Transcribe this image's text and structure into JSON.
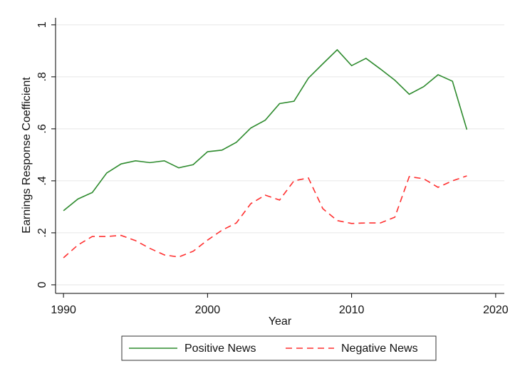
{
  "chart_data": {
    "type": "line",
    "xlabel": "Year",
    "ylabel": "Earnings Response Coefficient",
    "x": [
      1990,
      1991,
      1992,
      1993,
      1994,
      1995,
      1996,
      1997,
      1998,
      1999,
      2000,
      2001,
      2002,
      2003,
      2004,
      2005,
      2006,
      2007,
      2008,
      2009,
      2010,
      2011,
      2012,
      2013,
      2014,
      2015,
      2016,
      2017,
      2018
    ],
    "series": [
      {
        "name": "Positive News",
        "color": "#2e8b2e",
        "dash": "none",
        "values": [
          0.285,
          0.33,
          0.355,
          0.43,
          0.465,
          0.477,
          0.47,
          0.477,
          0.45,
          0.462,
          0.512,
          0.518,
          0.548,
          0.603,
          0.633,
          0.697,
          0.706,
          0.795,
          0.85,
          0.904,
          0.843,
          0.871,
          0.83,
          0.787,
          0.733,
          0.762,
          0.808,
          0.783,
          0.597
        ]
      },
      {
        "name": "Negative News",
        "color": "#ff3030",
        "dash": "9 6",
        "values": [
          0.104,
          0.153,
          0.186,
          0.186,
          0.19,
          0.17,
          0.14,
          0.115,
          0.107,
          0.129,
          0.172,
          0.21,
          0.238,
          0.312,
          0.345,
          0.326,
          0.4,
          0.411,
          0.293,
          0.247,
          0.236,
          0.238,
          0.238,
          0.26,
          0.416,
          0.408,
          0.375,
          0.4,
          0.419
        ]
      }
    ],
    "xlim": [
      1989.45,
      2020.6
    ],
    "xticks": [
      1990,
      2000,
      2010,
      2020
    ],
    "ylim": [
      -0.033,
      1.027
    ],
    "yticks": [
      0,
      {
        "value": 0.2,
        "label": ".2"
      },
      {
        "value": 0.4,
        "label": ".4"
      },
      {
        "value": 0.6,
        "label": ".6"
      },
      {
        "value": 0.8,
        "label": ".8"
      },
      1
    ],
    "grid": true,
    "legend": "bottom"
  }
}
